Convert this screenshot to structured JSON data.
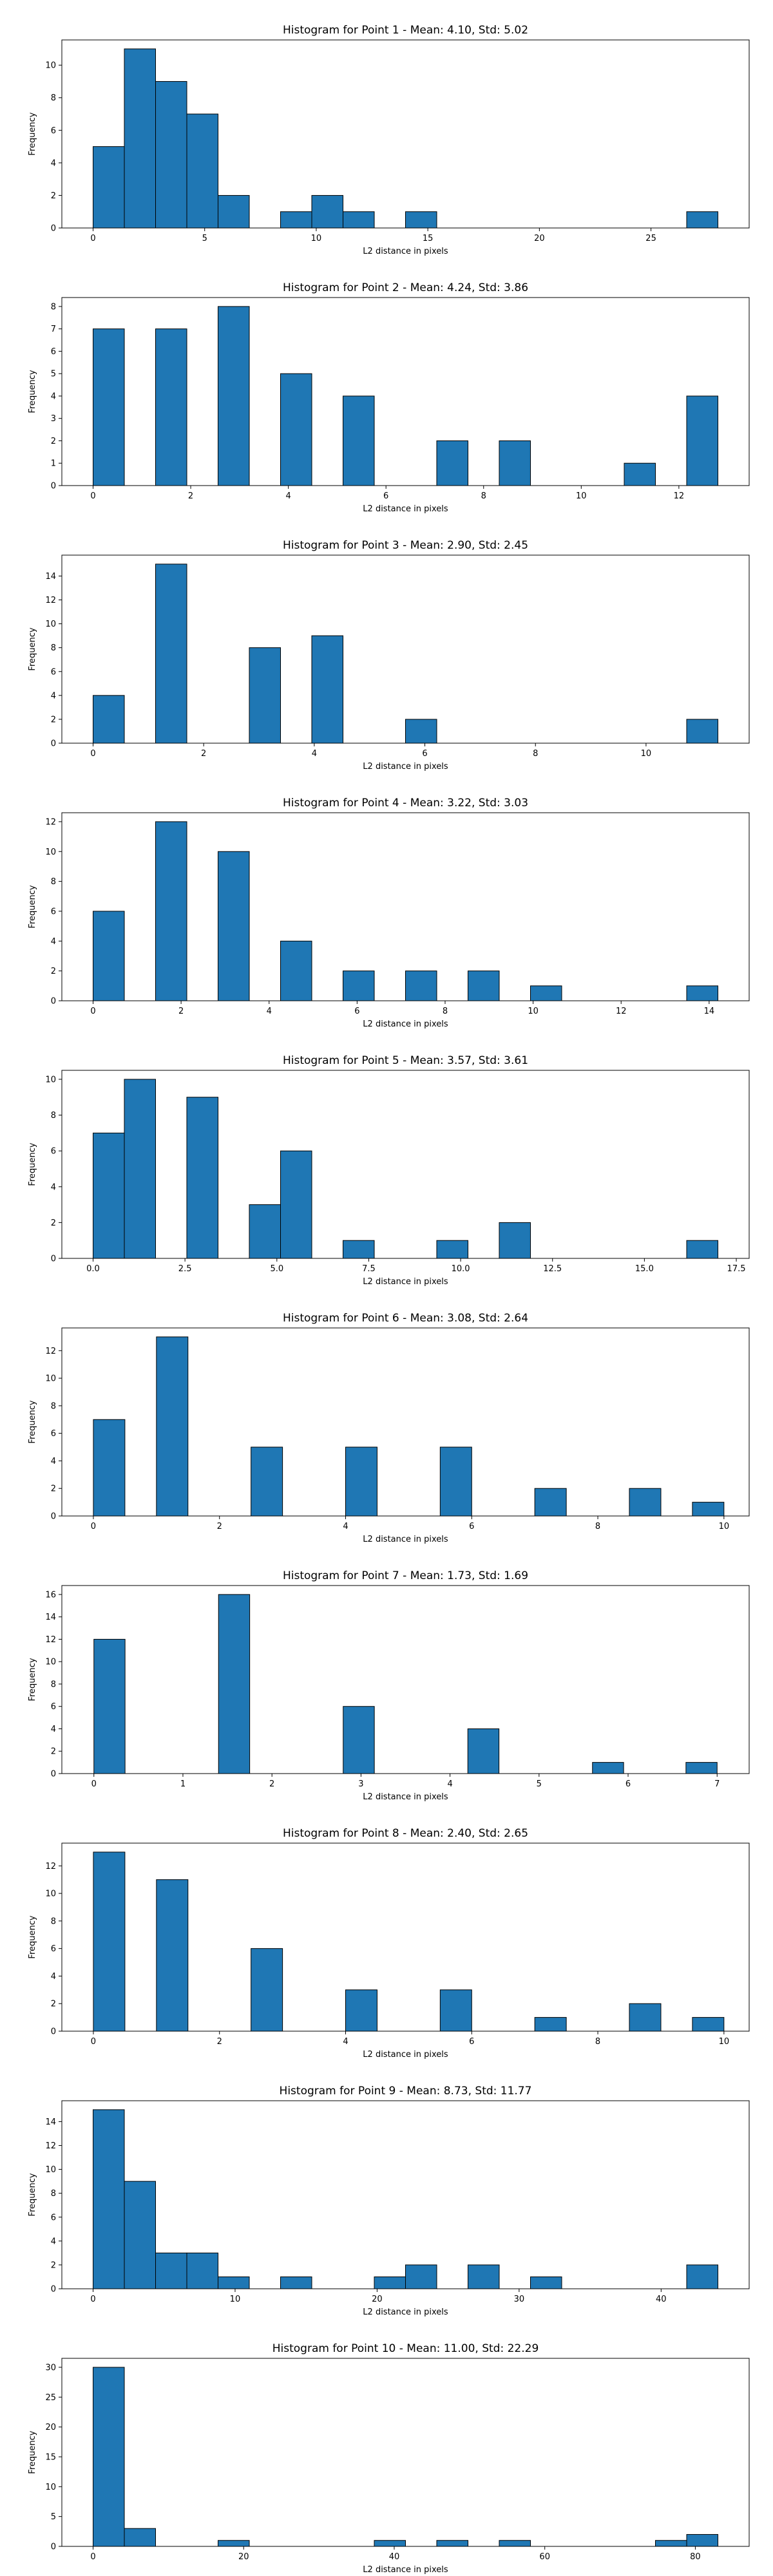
{
  "style": {
    "bar_fill": "#1f77b4",
    "bar_edge": "#000000",
    "axis_color": "#000000"
  },
  "chart_data": [
    {
      "type": "bar",
      "title": "Histogram for Point 1 - Mean: 4.10, Std: 5.02",
      "xlabel": "L2 distance in pixels",
      "ylabel": "Frequency",
      "xlim": [
        -1.4,
        29.4
      ],
      "ylim": [
        0,
        11.55
      ],
      "xticks": [
        0,
        5,
        10,
        15,
        20,
        25
      ],
      "yticks": [
        0,
        2,
        4,
        6,
        8,
        10
      ],
      "bins": [
        [
          0,
          1.4
        ],
        [
          1.4,
          2.8
        ],
        [
          2.8,
          4.2
        ],
        [
          4.2,
          5.6
        ],
        [
          5.6,
          7.0
        ],
        [
          7.0,
          8.4
        ],
        [
          8.4,
          9.8
        ],
        [
          9.8,
          11.2
        ],
        [
          11.2,
          12.6
        ],
        [
          12.6,
          14.0
        ],
        [
          14.0,
          15.4
        ],
        [
          15.4,
          16.8
        ],
        [
          16.8,
          18.2
        ],
        [
          18.2,
          19.6
        ],
        [
          19.6,
          21.0
        ],
        [
          21.0,
          22.4
        ],
        [
          22.4,
          23.8
        ],
        [
          23.8,
          25.2
        ],
        [
          25.2,
          26.6
        ],
        [
          26.6,
          28.0
        ]
      ],
      "counts": [
        5,
        11,
        9,
        7,
        2,
        0,
        1,
        2,
        1,
        0,
        1,
        0,
        0,
        0,
        0,
        0,
        0,
        0,
        0,
        1
      ]
    },
    {
      "type": "bar",
      "title": "Histogram for Point 2 - Mean: 4.24, Std: 3.86",
      "xlabel": "L2 distance in pixels",
      "ylabel": "Frequency",
      "xlim": [
        -0.64,
        13.44
      ],
      "ylim": [
        0,
        8.4
      ],
      "xticks": [
        0,
        2,
        4,
        6,
        8,
        10,
        12
      ],
      "yticks": [
        0,
        1,
        2,
        3,
        4,
        5,
        6,
        7,
        8
      ],
      "bins": [
        [
          0,
          0.64
        ],
        [
          0.64,
          1.28
        ],
        [
          1.28,
          1.92
        ],
        [
          1.92,
          2.56
        ],
        [
          2.56,
          3.2
        ],
        [
          3.2,
          3.84
        ],
        [
          3.84,
          4.48
        ],
        [
          4.48,
          5.12
        ],
        [
          5.12,
          5.76
        ],
        [
          5.76,
          6.4
        ],
        [
          6.4,
          7.04
        ],
        [
          7.04,
          7.68
        ],
        [
          7.68,
          8.32
        ],
        [
          8.32,
          8.96
        ],
        [
          8.96,
          9.6
        ],
        [
          9.6,
          10.24
        ],
        [
          10.24,
          10.88
        ],
        [
          10.88,
          11.52
        ],
        [
          11.52,
          12.16
        ],
        [
          12.16,
          12.8
        ]
      ],
      "counts": [
        7,
        0,
        7,
        0,
        8,
        0,
        5,
        0,
        4,
        0,
        0,
        2,
        0,
        2,
        0,
        0,
        0,
        1,
        0,
        4
      ]
    },
    {
      "type": "bar",
      "title": "Histogram for Point 3 - Mean: 2.90, Std: 2.45",
      "xlabel": "L2 distance in pixels",
      "ylabel": "Frequency",
      "xlim": [
        -0.565,
        11.865
      ],
      "ylim": [
        0,
        15.75
      ],
      "xticks": [
        0,
        2,
        4,
        6,
        8,
        10
      ],
      "yticks": [
        0,
        2,
        4,
        6,
        8,
        10,
        12,
        14
      ],
      "bins": [
        [
          0,
          0.565
        ],
        [
          0.565,
          1.13
        ],
        [
          1.13,
          1.695
        ],
        [
          1.695,
          2.26
        ],
        [
          2.26,
          2.825
        ],
        [
          2.825,
          3.39
        ],
        [
          3.39,
          3.955
        ],
        [
          3.955,
          4.52
        ],
        [
          4.52,
          5.085
        ],
        [
          5.085,
          5.65
        ],
        [
          5.65,
          6.215
        ],
        [
          6.215,
          6.78
        ],
        [
          6.78,
          7.345
        ],
        [
          7.345,
          7.91
        ],
        [
          7.91,
          8.475
        ],
        [
          8.475,
          9.04
        ],
        [
          9.04,
          9.605
        ],
        [
          9.605,
          10.17
        ],
        [
          10.17,
          10.735
        ],
        [
          10.735,
          11.3
        ]
      ],
      "counts": [
        4,
        0,
        15,
        0,
        0,
        8,
        0,
        9,
        0,
        0,
        2,
        0,
        0,
        0,
        0,
        0,
        0,
        0,
        0,
        2
      ]
    },
    {
      "type": "bar",
      "title": "Histogram for Point 4 - Mean: 3.22, Std: 3.03",
      "xlabel": "L2 distance in pixels",
      "ylabel": "Frequency",
      "xlim": [
        -0.71,
        14.91
      ],
      "ylim": [
        0,
        12.6
      ],
      "xticks": [
        0,
        2,
        4,
        6,
        8,
        10,
        12,
        14
      ],
      "yticks": [
        0,
        2,
        4,
        6,
        8,
        10,
        12
      ],
      "bins": [
        [
          0,
          0.71
        ],
        [
          0.71,
          1.42
        ],
        [
          1.42,
          2.13
        ],
        [
          2.13,
          2.84
        ],
        [
          2.84,
          3.55
        ],
        [
          3.55,
          4.26
        ],
        [
          4.26,
          4.97
        ],
        [
          4.97,
          5.68
        ],
        [
          5.68,
          6.39
        ],
        [
          6.39,
          7.1
        ],
        [
          7.1,
          7.81
        ],
        [
          7.81,
          8.52
        ],
        [
          8.52,
          9.23
        ],
        [
          9.23,
          9.94
        ],
        [
          9.94,
          10.65
        ],
        [
          10.65,
          11.36
        ],
        [
          11.36,
          12.07
        ],
        [
          12.07,
          12.78
        ],
        [
          12.78,
          13.49
        ],
        [
          13.49,
          14.2
        ]
      ],
      "counts": [
        6,
        0,
        12,
        0,
        10,
        0,
        4,
        0,
        2,
        0,
        2,
        0,
        2,
        0,
        1,
        0,
        0,
        0,
        0,
        1
      ]
    },
    {
      "type": "bar",
      "title": "Histogram for Point 5 - Mean: 3.57, Std: 3.61",
      "xlabel": "L2 distance in pixels",
      "ylabel": "Frequency",
      "xlim": [
        -0.85,
        17.85
      ],
      "ylim": [
        0,
        10.5
      ],
      "xticks": [
        0.0,
        2.5,
        5.0,
        7.5,
        10.0,
        12.5,
        15.0,
        17.5
      ],
      "yticks": [
        0,
        2,
        4,
        6,
        8,
        10
      ],
      "tick_decimals": 1,
      "bins": [
        [
          0,
          0.85
        ],
        [
          0.85,
          1.7
        ],
        [
          1.7,
          2.55
        ],
        [
          2.55,
          3.4
        ],
        [
          3.4,
          4.25
        ],
        [
          4.25,
          5.1
        ],
        [
          5.1,
          5.95
        ],
        [
          5.95,
          6.8
        ],
        [
          6.8,
          7.65
        ],
        [
          7.65,
          8.5
        ],
        [
          8.5,
          9.35
        ],
        [
          9.35,
          10.2
        ],
        [
          10.2,
          11.05
        ],
        [
          11.05,
          11.9
        ],
        [
          11.9,
          12.75
        ],
        [
          12.75,
          13.6
        ],
        [
          13.6,
          14.45
        ],
        [
          14.45,
          15.3
        ],
        [
          15.3,
          16.15
        ],
        [
          16.15,
          17.0
        ]
      ],
      "counts": [
        7,
        10,
        0,
        9,
        0,
        3,
        6,
        0,
        1,
        0,
        0,
        1,
        0,
        2,
        0,
        0,
        0,
        0,
        0,
        1
      ]
    },
    {
      "type": "bar",
      "title": "Histogram for Point 6 - Mean: 3.08, Std: 2.64",
      "xlabel": "L2 distance in pixels",
      "ylabel": "Frequency",
      "xlim": [
        -0.5,
        10.4
      ],
      "ylim": [
        0,
        13.65
      ],
      "xticks": [
        0,
        2,
        4,
        6,
        8,
        10
      ],
      "yticks": [
        0,
        2,
        4,
        6,
        8,
        10,
        12
      ],
      "bins": [
        [
          0,
          0.5
        ],
        [
          0.5,
          1.0
        ],
        [
          1.0,
          1.5
        ],
        [
          1.5,
          2.0
        ],
        [
          2.0,
          2.5
        ],
        [
          2.5,
          3.0
        ],
        [
          3.0,
          3.5
        ],
        [
          3.5,
          4.0
        ],
        [
          4.0,
          4.5
        ],
        [
          4.5,
          5.0
        ],
        [
          5.0,
          5.5
        ],
        [
          5.5,
          6.0
        ],
        [
          6.0,
          6.5
        ],
        [
          6.5,
          7.0
        ],
        [
          7.0,
          7.5
        ],
        [
          7.5,
          8.0
        ],
        [
          8.0,
          8.5
        ],
        [
          8.5,
          9.0
        ],
        [
          9.0,
          9.5
        ],
        [
          9.5,
          10.0
        ]
      ],
      "counts": [
        7,
        0,
        13,
        0,
        0,
        5,
        0,
        0,
        5,
        0,
        0,
        5,
        0,
        0,
        2,
        0,
        0,
        2,
        0,
        1
      ]
    },
    {
      "type": "bar",
      "title": "Histogram for Point 7 - Mean: 1.73, Std: 1.69",
      "xlabel": "L2 distance in pixels",
      "ylabel": "Frequency",
      "xlim": [
        -0.36,
        7.36
      ],
      "ylim": [
        0,
        16.8
      ],
      "xticks": [
        0,
        1,
        2,
        3,
        4,
        5,
        6,
        7
      ],
      "yticks": [
        0,
        2,
        4,
        6,
        8,
        10,
        12,
        14,
        16
      ],
      "bins": [
        [
          0,
          0.35
        ],
        [
          0.35,
          0.7
        ],
        [
          0.7,
          1.05
        ],
        [
          1.05,
          1.4
        ],
        [
          1.4,
          1.75
        ],
        [
          1.75,
          2.1
        ],
        [
          2.1,
          2.45
        ],
        [
          2.45,
          2.8
        ],
        [
          2.8,
          3.15
        ],
        [
          3.15,
          3.5
        ],
        [
          3.5,
          3.85
        ],
        [
          3.85,
          4.2
        ],
        [
          4.2,
          4.55
        ],
        [
          4.55,
          4.9
        ],
        [
          4.9,
          5.25
        ],
        [
          5.25,
          5.6
        ],
        [
          5.6,
          5.95
        ],
        [
          5.95,
          6.3
        ],
        [
          6.3,
          6.65
        ],
        [
          6.65,
          7.0
        ]
      ],
      "counts": [
        12,
        0,
        0,
        0,
        16,
        0,
        0,
        0,
        6,
        0,
        0,
        0,
        4,
        0,
        0,
        0,
        1,
        0,
        0,
        1
      ]
    },
    {
      "type": "bar",
      "title": "Histogram for Point 8 - Mean: 2.40, Std: 2.65",
      "xlabel": "L2 distance in pixels",
      "ylabel": "Frequency",
      "xlim": [
        -0.5,
        10.4
      ],
      "ylim": [
        0,
        13.65
      ],
      "xticks": [
        0,
        2,
        4,
        6,
        8,
        10
      ],
      "yticks": [
        0,
        2,
        4,
        6,
        8,
        10,
        12
      ],
      "bins": [
        [
          0,
          0.5
        ],
        [
          0.5,
          1.0
        ],
        [
          1.0,
          1.5
        ],
        [
          1.5,
          2.0
        ],
        [
          2.0,
          2.5
        ],
        [
          2.5,
          3.0
        ],
        [
          3.0,
          3.5
        ],
        [
          3.5,
          4.0
        ],
        [
          4.0,
          4.5
        ],
        [
          4.5,
          5.0
        ],
        [
          5.0,
          5.5
        ],
        [
          5.5,
          6.0
        ],
        [
          6.0,
          6.5
        ],
        [
          6.5,
          7.0
        ],
        [
          7.0,
          7.5
        ],
        [
          7.5,
          8.0
        ],
        [
          8.0,
          8.5
        ],
        [
          8.5,
          9.0
        ],
        [
          9.0,
          9.5
        ],
        [
          9.5,
          10.0
        ]
      ],
      "counts": [
        13,
        0,
        11,
        0,
        0,
        6,
        0,
        0,
        3,
        0,
        0,
        3,
        0,
        0,
        1,
        0,
        0,
        2,
        0,
        1
      ]
    },
    {
      "type": "bar",
      "title": "Histogram for Point 9 - Mean: 8.73, Std: 11.77",
      "xlabel": "L2 distance in pixels",
      "ylabel": "Frequency",
      "xlim": [
        -2.2,
        46.2
      ],
      "ylim": [
        0,
        15.75
      ],
      "xticks": [
        0,
        10,
        20,
        30,
        40
      ],
      "yticks": [
        0,
        2,
        4,
        6,
        8,
        10,
        12,
        14
      ],
      "bins": [
        [
          0,
          2.2
        ],
        [
          2.2,
          4.4
        ],
        [
          4.4,
          6.6
        ],
        [
          6.6,
          8.8
        ],
        [
          8.8,
          11.0
        ],
        [
          11.0,
          13.2
        ],
        [
          13.2,
          15.4
        ],
        [
          15.4,
          17.6
        ],
        [
          17.6,
          19.8
        ],
        [
          19.8,
          22.0
        ],
        [
          22.0,
          24.2
        ],
        [
          24.2,
          26.4
        ],
        [
          26.4,
          28.6
        ],
        [
          28.6,
          30.8
        ],
        [
          30.8,
          33.0
        ],
        [
          33.0,
          35.2
        ],
        [
          35.2,
          37.4
        ],
        [
          37.4,
          39.6
        ],
        [
          39.6,
          41.8
        ],
        [
          41.8,
          44.0
        ]
      ],
      "counts": [
        15,
        9,
        3,
        3,
        1,
        0,
        1,
        0,
        0,
        1,
        2,
        0,
        2,
        0,
        1,
        0,
        0,
        0,
        0,
        2
      ]
    },
    {
      "type": "bar",
      "title": "Histogram for Point 10 - Mean: 11.00, Std: 22.29",
      "xlabel": "L2 distance in pixels",
      "ylabel": "Frequency",
      "xlim": [
        -4.15,
        87.15
      ],
      "ylim": [
        0,
        31.5
      ],
      "xticks": [
        0,
        20,
        40,
        60,
        80
      ],
      "yticks": [
        0,
        5,
        10,
        15,
        20,
        25,
        30
      ],
      "bins": [
        [
          0,
          4.15
        ],
        [
          4.15,
          8.3
        ],
        [
          8.3,
          12.45
        ],
        [
          12.45,
          16.6
        ],
        [
          16.6,
          20.75
        ],
        [
          20.75,
          24.9
        ],
        [
          24.9,
          29.05
        ],
        [
          29.05,
          33.2
        ],
        [
          33.2,
          37.35
        ],
        [
          37.35,
          41.5
        ],
        [
          41.5,
          45.65
        ],
        [
          45.65,
          49.8
        ],
        [
          49.8,
          53.95
        ],
        [
          53.95,
          58.1
        ],
        [
          58.1,
          62.25
        ],
        [
          62.25,
          66.4
        ],
        [
          66.4,
          70.55
        ],
        [
          70.55,
          74.7
        ],
        [
          74.7,
          78.85
        ],
        [
          78.85,
          83.0
        ]
      ],
      "counts": [
        30,
        3,
        0,
        0,
        1,
        0,
        0,
        0,
        0,
        1,
        0,
        1,
        0,
        1,
        0,
        0,
        0,
        0,
        1,
        2
      ]
    }
  ]
}
